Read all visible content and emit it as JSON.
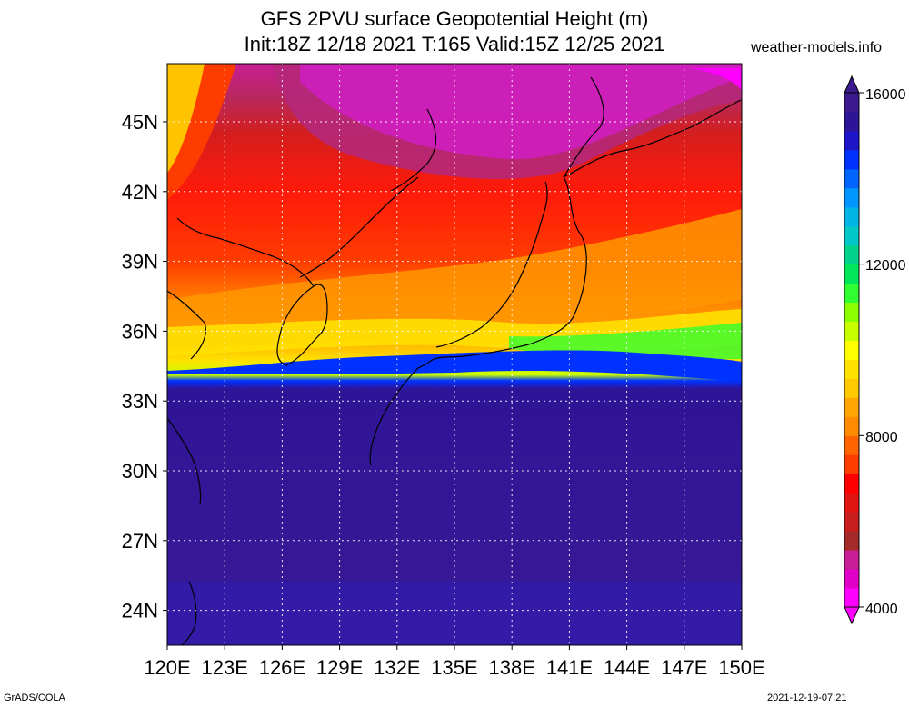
{
  "title": {
    "line1": "GFS 2PVU surface Geopotential Height (m)",
    "line2": "Init:18Z 12/18 2021 T:165 Valid:15Z 12/25 2021"
  },
  "site": "weather-models.info",
  "footer": {
    "left": "GrADS/COLA",
    "right": "2021-12-19-07:21"
  },
  "map": {
    "lat_labels": [
      "45N",
      "42N",
      "39N",
      "36N",
      "33N",
      "30N",
      "27N",
      "24N"
    ],
    "lat_values": [
      45,
      42,
      39,
      36,
      33,
      30,
      27,
      24
    ],
    "lon_labels": [
      "120E",
      "123E",
      "126E",
      "129E",
      "132E",
      "135E",
      "138E",
      "141E",
      "144E",
      "147E",
      "150E"
    ],
    "lon_values": [
      120,
      123,
      126,
      129,
      132,
      135,
      138,
      141,
      144,
      147,
      150
    ],
    "lat_range": [
      22.5,
      47.5
    ],
    "lon_range": [
      120,
      150
    ]
  },
  "colorbar": {
    "labels": [
      "16000",
      "12000",
      "8000",
      "4000"
    ],
    "min": 4000,
    "max": 16000,
    "colors": [
      "#ff00ff",
      "#e000c8",
      "#c81e96",
      "#a52a2a",
      "#c81e1e",
      "#e11414",
      "#ff0000",
      "#ff3c00",
      "#ff6400",
      "#ff8c00",
      "#ffa500",
      "#ffc800",
      "#ffe100",
      "#ffff00",
      "#c8ff00",
      "#8cff00",
      "#32ff32",
      "#00e65a",
      "#00d28c",
      "#00c8c8",
      "#00b4e6",
      "#0096ff",
      "#0064ff",
      "#0032ff",
      "#1e14c8",
      "#2e1496",
      "#3a1a8c"
    ]
  }
}
